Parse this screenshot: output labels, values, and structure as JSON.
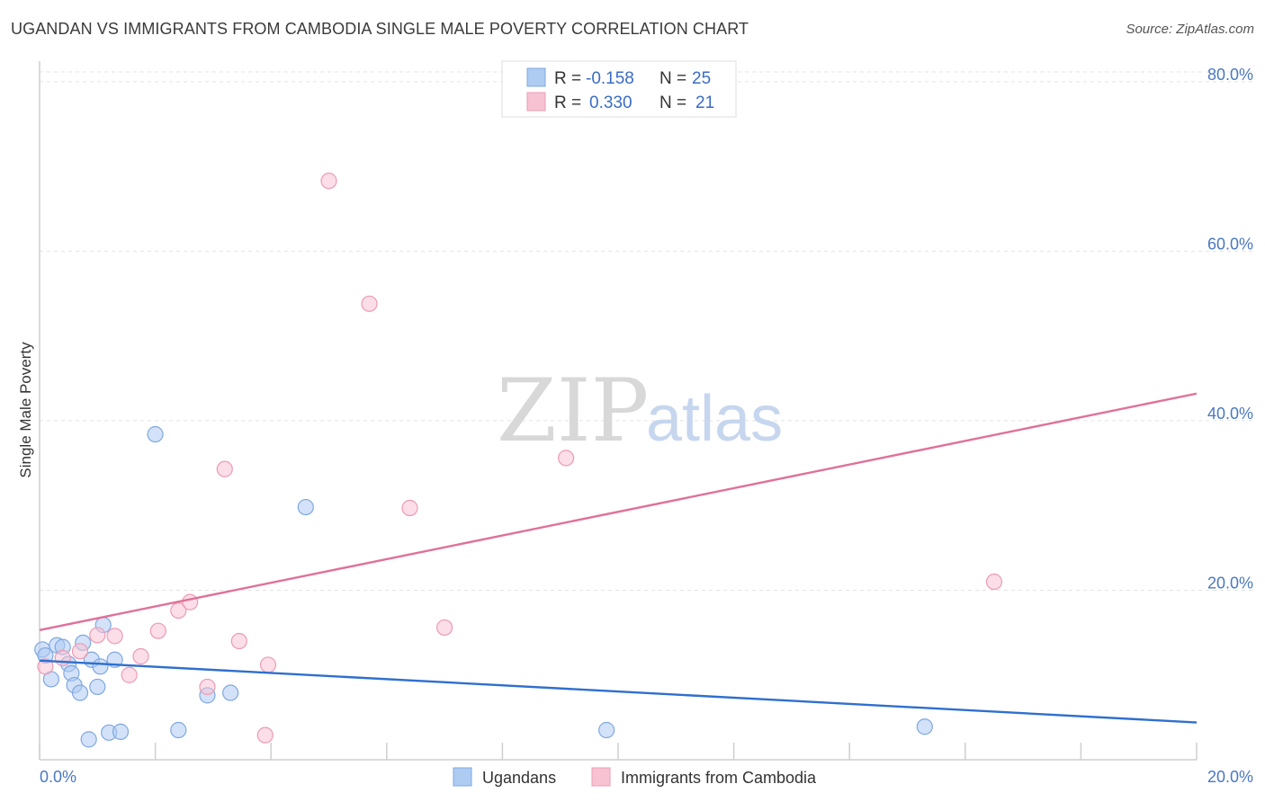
{
  "header": {
    "title": "UGANDAN VS IMMIGRANTS FROM CAMBODIA SINGLE MALE POVERTY CORRELATION CHART",
    "source": "Source: ZipAtlas.com"
  },
  "watermark": {
    "zip": "ZIP",
    "atlas": "atlas"
  },
  "legend": {
    "r_label": "R =",
    "n_label": "N =",
    "rows": [
      {
        "r": "-0.158",
        "n": "25",
        "color": "#aecbf2",
        "stroke": "#7fa8e0"
      },
      {
        "r": "0.330",
        "n": "21",
        "color": "#f7c3d3",
        "stroke": "#ec9bb5"
      }
    ]
  },
  "chart_data": {
    "type": "scatter",
    "title": "UGANDAN VS IMMIGRANTS FROM CAMBODIA SINGLE MALE POVERTY CORRELATION CHART",
    "xlabel": "",
    "ylabel": "Single Male Poverty",
    "xlim": [
      0,
      20
    ],
    "ylim": [
      0,
      82
    ],
    "x_tick_labels": [
      "0.0%",
      "20.0%"
    ],
    "y_ticks": [
      20,
      40,
      60,
      80
    ],
    "y_tick_labels": [
      "20.0%",
      "40.0%",
      "60.0%",
      "80.0%"
    ],
    "grid": true,
    "legend_position": "top-center",
    "series": [
      {
        "name": "Ugandans",
        "color": "#aecbf2",
        "stroke": "#7fa8e0",
        "line_color": "#2f6fcf",
        "trend": [
          [
            0,
            11.7
          ],
          [
            20,
            4.4
          ]
        ],
        "points": [
          [
            0.05,
            13.0
          ],
          [
            0.1,
            12.3
          ],
          [
            0.2,
            9.5
          ],
          [
            0.3,
            13.5
          ],
          [
            0.4,
            13.3
          ],
          [
            0.5,
            11.3
          ],
          [
            0.55,
            10.2
          ],
          [
            0.6,
            8.8
          ],
          [
            0.7,
            7.9
          ],
          [
            0.75,
            13.8
          ],
          [
            0.85,
            2.4
          ],
          [
            0.9,
            11.8
          ],
          [
            1.0,
            8.6
          ],
          [
            1.05,
            11.0
          ],
          [
            1.1,
            15.9
          ],
          [
            1.2,
            3.2
          ],
          [
            1.3,
            11.8
          ],
          [
            1.4,
            3.3
          ],
          [
            2.0,
            38.4
          ],
          [
            2.4,
            3.5
          ],
          [
            2.9,
            7.6
          ],
          [
            3.3,
            7.9
          ],
          [
            4.6,
            29.8
          ],
          [
            9.8,
            3.5
          ],
          [
            15.3,
            3.9
          ]
        ]
      },
      {
        "name": "Immigrants from Cambodia",
        "color": "#f7c3d3",
        "stroke": "#ec9bb5",
        "line_color": "#e0709a",
        "trend": [
          [
            0,
            15.3
          ],
          [
            20,
            43.2
          ]
        ],
        "points": [
          [
            0.1,
            11.0
          ],
          [
            0.4,
            12.0
          ],
          [
            0.7,
            12.8
          ],
          [
            1.0,
            14.7
          ],
          [
            1.3,
            14.6
          ],
          [
            1.55,
            10.0
          ],
          [
            1.75,
            12.2
          ],
          [
            2.05,
            15.2
          ],
          [
            2.4,
            17.6
          ],
          [
            2.6,
            18.6
          ],
          [
            2.9,
            8.6
          ],
          [
            3.2,
            34.3
          ],
          [
            3.45,
            14.0
          ],
          [
            3.9,
            2.9
          ],
          [
            3.95,
            11.2
          ],
          [
            5.0,
            68.3
          ],
          [
            5.7,
            53.8
          ],
          [
            6.4,
            29.7
          ],
          [
            7.0,
            15.6
          ],
          [
            9.1,
            35.6
          ],
          [
            16.5,
            21.0
          ]
        ]
      }
    ]
  }
}
